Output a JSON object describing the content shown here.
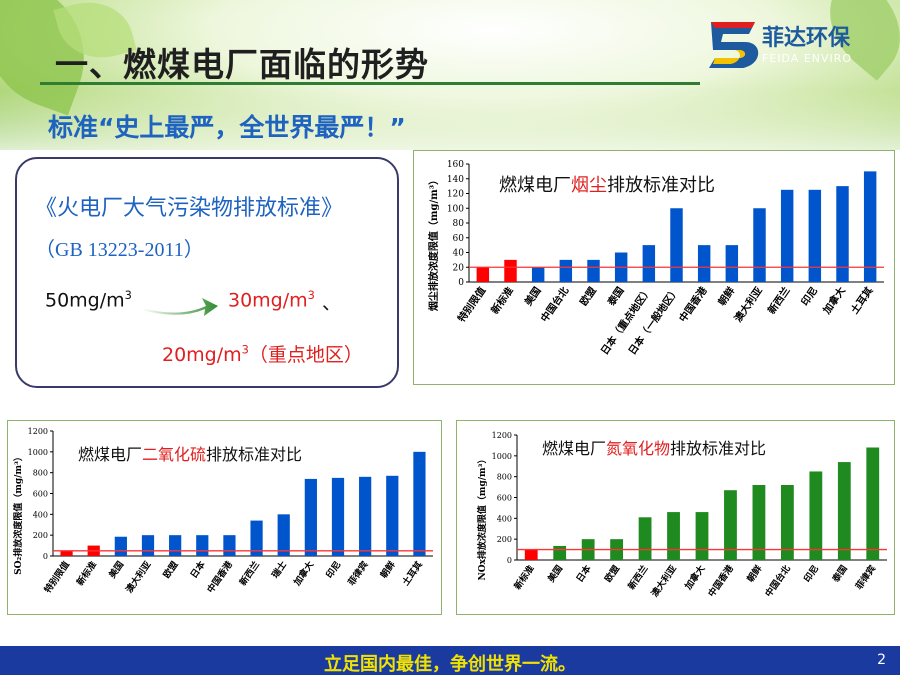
{
  "slide": {
    "title": "一、燃煤电厂面临的形势",
    "subtitle": "标准“史上最严，全世界最严！”",
    "logo": {
      "cn": "菲达环保",
      "en": "FEIDA ENVIRO"
    },
    "standard": {
      "name": "《火电厂大气污染物排放标准》",
      "code": "（GB 13223-2011）",
      "old_value": "50mg/m",
      "old_exp": "3",
      "new_value": "30mg/m",
      "new_exp": "3",
      "separator": "、",
      "key_value": "20mg/m",
      "key_exp": "3",
      "key_note": "（重点地区）"
    },
    "footer": "立足国内最佳，争创世界一流。",
    "page_number": "2",
    "colors": {
      "red": "#ff0000",
      "blue": "#0055cc",
      "green": "#1f8a1f",
      "accent": "#1e63c0",
      "footer_bg": "#1a3aa0",
      "footer_text": "#f2e200"
    }
  },
  "chart_data": [
    {
      "id": "dust",
      "type": "bar",
      "title_pre": "燃煤电厂",
      "title_hl": "烟尘",
      "title_post": "排放标准对比",
      "ylabel": "烟尘排放浓度限值（mg/m³）",
      "ylim": [
        0,
        160
      ],
      "yticks": [
        0,
        20,
        40,
        60,
        80,
        100,
        120,
        140,
        160
      ],
      "reference_line": 20,
      "categories": [
        "特别限值",
        "新标准",
        "美国",
        "中国台北",
        "欧盟",
        "泰国",
        "日本（重点地区）",
        "日本（一般地区）",
        "中国香港",
        "朝鲜",
        "澳大利亚",
        "新西兰",
        "印尼",
        "加拿大",
        "土耳其"
      ],
      "values": [
        20,
        30,
        20,
        30,
        30,
        40,
        50,
        100,
        50,
        50,
        100,
        125,
        125,
        130,
        150
      ],
      "colors": [
        "red",
        "red",
        "blue",
        "blue",
        "blue",
        "blue",
        "blue",
        "blue",
        "blue",
        "blue",
        "blue",
        "blue",
        "blue",
        "blue",
        "blue"
      ]
    },
    {
      "id": "so2",
      "type": "bar",
      "title_pre": "燃煤电厂",
      "title_hl": "二氧化硫",
      "title_post": "排放标准对比",
      "ylabel": "SO₂排放浓度限值（mg/m³）",
      "ylim": [
        0,
        1200
      ],
      "yticks": [
        0,
        200,
        400,
        600,
        800,
        1000,
        1200
      ],
      "reference_line": 50,
      "categories": [
        "特别限值",
        "新标准",
        "美国",
        "澳大利亚",
        "欧盟",
        "日本",
        "中国香港",
        "新西兰",
        "瑞士",
        "加拿大",
        "印尼",
        "菲律宾",
        "朝鲜",
        "土耳其"
      ],
      "values": [
        50,
        100,
        185,
        200,
        200,
        200,
        200,
        340,
        400,
        740,
        750,
        760,
        770,
        1000
      ],
      "colors": [
        "red",
        "red",
        "blue",
        "blue",
        "blue",
        "blue",
        "blue",
        "blue",
        "blue",
        "blue",
        "blue",
        "blue",
        "blue",
        "blue"
      ]
    },
    {
      "id": "nox",
      "type": "bar",
      "title_pre": "燃煤电厂",
      "title_hl": "氮氧化物",
      "title_post": "排放标准对比",
      "ylabel": "NOx排放浓度限值（mg/m³）",
      "ylim": [
        0,
        1200
      ],
      "yticks": [
        0,
        200,
        400,
        600,
        800,
        1000,
        1200
      ],
      "reference_line": 100,
      "categories": [
        "新标准",
        "美国",
        "日本",
        "欧盟",
        "新西兰",
        "澳大利亚",
        "加拿大",
        "中国香港",
        "朝鲜",
        "中国台北",
        "印尼",
        "泰国",
        "菲律宾"
      ],
      "values": [
        100,
        135,
        200,
        200,
        410,
        460,
        460,
        670,
        720,
        720,
        850,
        940,
        1080
      ],
      "colors": [
        "red",
        "green",
        "green",
        "green",
        "green",
        "green",
        "green",
        "green",
        "green",
        "green",
        "green",
        "green",
        "green"
      ]
    }
  ]
}
